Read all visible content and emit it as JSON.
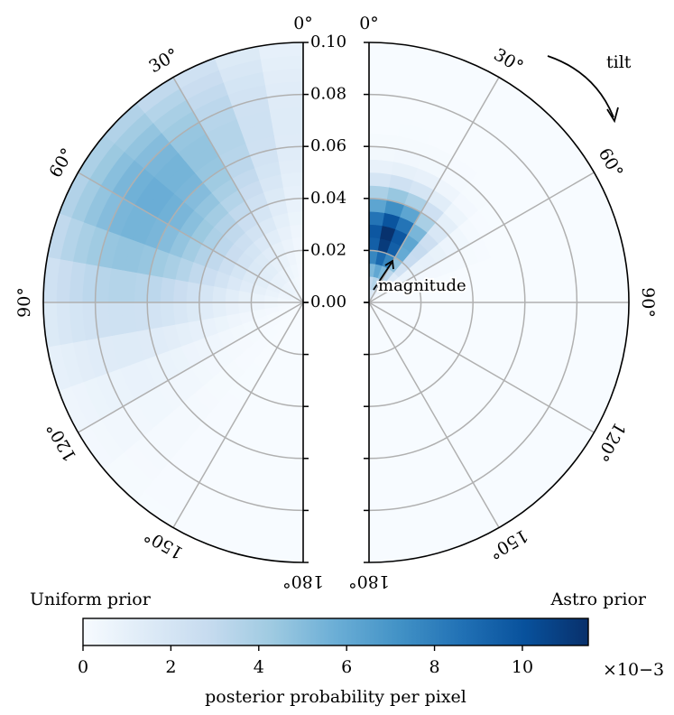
{
  "chart_data": {
    "type": "heatmap",
    "projection": "half-polar",
    "angle_axis": {
      "name": "tilt",
      "unit": "deg",
      "range": [
        0,
        180
      ],
      "tick_values": [
        0,
        30,
        60,
        90,
        120,
        150,
        180
      ],
      "tick_labels": [
        "0°",
        "30°",
        "60°",
        "90°",
        "120°",
        "150°",
        "180°"
      ]
    },
    "radial_axis": {
      "name": "magnitude",
      "range": [
        0,
        0.1
      ],
      "tick_values": [
        0,
        0.02,
        0.04,
        0.06,
        0.08,
        0.1
      ],
      "tick_labels": [
        "0.00",
        "0.02",
        "0.04",
        "0.06",
        "0.08",
        "0.10"
      ]
    },
    "grid": true,
    "annotations": {
      "tilt": "tilt",
      "magnitude": "magnitude"
    },
    "panels": [
      {
        "name": "Uniform prior",
        "side": "left",
        "peak_value": 0.0058,
        "peak_magnitude": 0.07,
        "peak_tilt": 55,
        "magnitude_spread": 0.03,
        "tilt_spread": 30
      },
      {
        "name": "Astro prior",
        "side": "right",
        "peak_value": 0.0115,
        "peak_magnitude": 0.026,
        "peak_tilt": 15,
        "magnitude_spread": 0.012,
        "tilt_spread": 18
      }
    ],
    "colorbar": {
      "label": "posterior probability per pixel",
      "multiplier": "×10−3",
      "range": [
        0,
        0.0115
      ],
      "ticks": [
        0,
        2,
        4,
        6,
        8,
        10
      ],
      "tick_labels": [
        "0",
        "2",
        "4",
        "6",
        "8",
        "10"
      ],
      "colormap": "Blues",
      "colors": [
        "#f7fbff",
        "#deebf7",
        "#c6dbef",
        "#9ecae1",
        "#6baed6",
        "#4292c6",
        "#2171b5",
        "#08519c",
        "#08306b"
      ]
    }
  }
}
